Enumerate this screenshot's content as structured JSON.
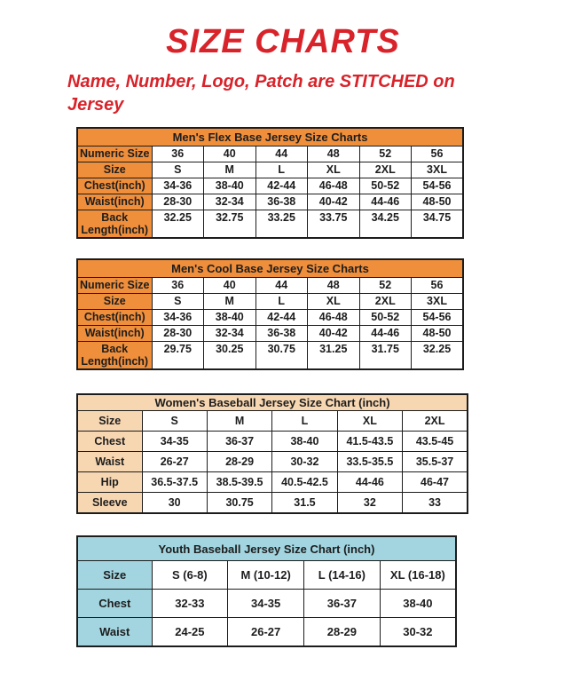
{
  "page": {
    "title": "SIZE CHARTS",
    "subtitle": "Name, Number, Logo, Patch are STITCHED on Jersey"
  },
  "colors": {
    "accent_red": "#D8232A",
    "mens_header_orange": "#EF8E3B",
    "womens_header_peach": "#F7D7B2",
    "youth_header_blue": "#A2D5E0",
    "border_black": "#1C1C1C",
    "text_dark": "#1D1D1D"
  },
  "tables": [
    {
      "title": "Men's Flex Base Jersey Size Charts",
      "theme": "orange",
      "rows": [
        {
          "label": "Numeric Size",
          "values": [
            "36",
            "40",
            "44",
            "48",
            "52",
            "56"
          ]
        },
        {
          "label": "Size",
          "values": [
            "S",
            "M",
            "L",
            "XL",
            "2XL",
            "3XL"
          ]
        },
        {
          "label": "Chest(inch)",
          "values": [
            "34-36",
            "38-40",
            "42-44",
            "46-48",
            "50-52",
            "54-56"
          ]
        },
        {
          "label": "Waist(inch)",
          "values": [
            "28-30",
            "32-34",
            "36-38",
            "40-42",
            "44-46",
            "48-50"
          ]
        },
        {
          "label": "Back Length(inch)",
          "values": [
            "32.25",
            "32.75",
            "33.25",
            "33.75",
            "34.25",
            "34.75"
          ]
        }
      ]
    },
    {
      "title": "Men's Cool Base Jersey Size Charts",
      "theme": "orange",
      "rows": [
        {
          "label": "Numeric Size",
          "values": [
            "36",
            "40",
            "44",
            "48",
            "52",
            "56"
          ]
        },
        {
          "label": "Size",
          "values": [
            "S",
            "M",
            "L",
            "XL",
            "2XL",
            "3XL"
          ]
        },
        {
          "label": "Chest(inch)",
          "values": [
            "34-36",
            "38-40",
            "42-44",
            "46-48",
            "50-52",
            "54-56"
          ]
        },
        {
          "label": "Waist(inch)",
          "values": [
            "28-30",
            "32-34",
            "36-38",
            "40-42",
            "44-46",
            "48-50"
          ]
        },
        {
          "label": "Back Length(inch)",
          "values": [
            "29.75",
            "30.25",
            "30.75",
            "31.25",
            "31.75",
            "32.25"
          ]
        }
      ]
    },
    {
      "title": "Women's Baseball Jersey Size Chart (inch)",
      "theme": "peach",
      "rows": [
        {
          "label": "Size",
          "values": [
            "S",
            "M",
            "L",
            "XL",
            "2XL"
          ]
        },
        {
          "label": "Chest",
          "values": [
            "34-35",
            "36-37",
            "38-40",
            "41.5-43.5",
            "43.5-45"
          ]
        },
        {
          "label": "Waist",
          "values": [
            "26-27",
            "28-29",
            "30-32",
            "33.5-35.5",
            "35.5-37"
          ]
        },
        {
          "label": "Hip",
          "values": [
            "36.5-37.5",
            "38.5-39.5",
            "40.5-42.5",
            "44-46",
            "46-47"
          ]
        },
        {
          "label": "Sleeve",
          "values": [
            "30",
            "30.75",
            "31.5",
            "32",
            "33"
          ]
        }
      ]
    },
    {
      "title": "Youth Baseball Jersey Size Chart (inch)",
      "theme": "blue",
      "rows": [
        {
          "label": "Size",
          "values": [
            "S (6-8)",
            "M (10-12)",
            "L (14-16)",
            "XL (16-18)"
          ]
        },
        {
          "label": "Chest",
          "values": [
            "32-33",
            "34-35",
            "36-37",
            "38-40"
          ]
        },
        {
          "label": "Waist",
          "values": [
            "24-25",
            "26-27",
            "28-29",
            "30-32"
          ]
        }
      ]
    }
  ]
}
